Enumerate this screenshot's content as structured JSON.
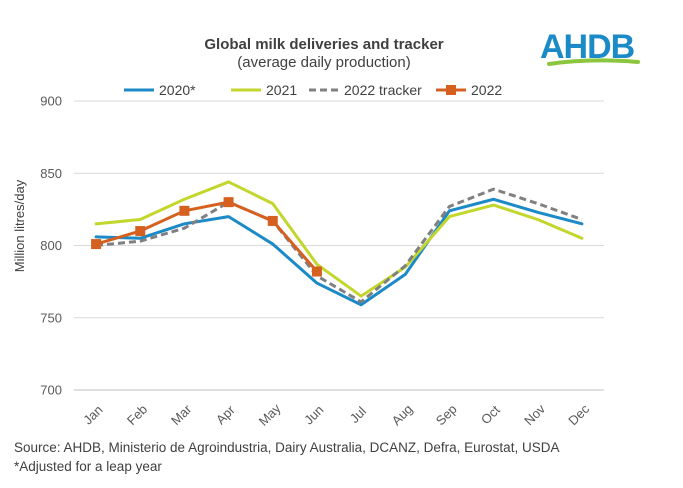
{
  "chart_data": {
    "type": "line",
    "title": "Global milk deliveries and tracker",
    "subtitle": "(average daily production)",
    "xlabel": "",
    "ylabel": "Million litres/day",
    "ylim": [
      700,
      900
    ],
    "yticks": [
      700,
      750,
      800,
      850,
      900
    ],
    "categories": [
      "Jan",
      "Feb",
      "Mar",
      "Apr",
      "May",
      "Jun",
      "Jul",
      "Aug",
      "Sep",
      "Oct",
      "Nov",
      "Dec"
    ],
    "grid": "horizontal",
    "legend_position": "top",
    "series": [
      {
        "name": "2020*",
        "color": "#1b8ac6",
        "style": "solid",
        "marker": "none",
        "values": [
          806,
          805,
          815,
          820,
          801,
          774,
          759,
          780,
          824,
          832,
          823,
          815
        ]
      },
      {
        "name": "2021",
        "color": "#c3d62c",
        "style": "solid",
        "marker": "none",
        "values": [
          815,
          818,
          832,
          844,
          829,
          787,
          765,
          785,
          820,
          828,
          818,
          805
        ]
      },
      {
        "name": "2022 tracker",
        "color": "#808080",
        "style": "dashed",
        "marker": "none",
        "values": [
          800,
          803,
          812,
          830,
          817,
          779,
          761,
          786,
          827,
          839,
          829,
          818
        ]
      },
      {
        "name": "2022",
        "color": "#d5601f",
        "style": "solid",
        "marker": "square",
        "values": [
          801,
          810,
          824,
          830,
          817,
          782,
          null,
          null,
          null,
          null,
          null,
          null
        ]
      }
    ]
  },
  "footer": {
    "source": "Source: AHDB, Ministerio de Agroindustria, Dairy Australia, DCANZ, Defra, Eurostat, USDA",
    "note": "*Adjusted for a leap year"
  },
  "logo": {
    "text": "AHDB",
    "color": "#1b8ac6",
    "swoosh_color": "#8cc63e"
  }
}
